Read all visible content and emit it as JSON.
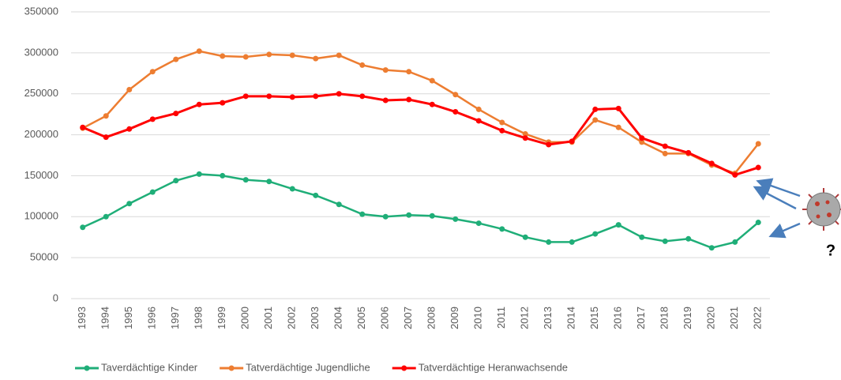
{
  "chart_data": {
    "type": "line",
    "categories": [
      "1993",
      "1994",
      "1995",
      "1996",
      "1997",
      "1998",
      "1999",
      "2000",
      "2001",
      "2002",
      "2003",
      "2004",
      "2005",
      "2006",
      "2007",
      "2008",
      "2009",
      "2010",
      "2011",
      "2012",
      "2013",
      "2014",
      "2015",
      "2016",
      "2017",
      "2018",
      "2019",
      "2020",
      "2021",
      "2022"
    ],
    "series": [
      {
        "name": "Taverdächtige Kinder",
        "color": "#1fae78",
        "values": [
          87000,
          100000,
          116000,
          130000,
          144000,
          152000,
          150000,
          145000,
          143000,
          134000,
          126000,
          115000,
          103000,
          100000,
          102000,
          101000,
          97000,
          92000,
          85000,
          75000,
          69000,
          69000,
          79000,
          90000,
          75000,
          70000,
          73000,
          62000,
          69000,
          93000
        ]
      },
      {
        "name": "Tatverdächtige Jugendliche",
        "color": "#ed7d31",
        "values": [
          208000,
          223000,
          255000,
          277000,
          292000,
          302000,
          296000,
          295000,
          298000,
          297000,
          293000,
          297000,
          285000,
          279000,
          277000,
          266000,
          249000,
          231000,
          215000,
          201000,
          191000,
          191000,
          218000,
          209000,
          191000,
          177000,
          177000,
          163000,
          153000,
          189000
        ]
      },
      {
        "name": "Tatverdächtige Heranwachsende",
        "color": "#ff0000",
        "values": [
          209000,
          197000,
          207000,
          219000,
          226000,
          237000,
          239000,
          247000,
          247000,
          246000,
          247000,
          250000,
          247000,
          242000,
          243000,
          237000,
          228000,
          217000,
          205000,
          196000,
          188000,
          192000,
          231000,
          232000,
          196000,
          186000,
          178000,
          165000,
          151000,
          160000
        ]
      }
    ],
    "ylim": [
      0,
      350000
    ],
    "yticks": [
      0,
      50000,
      100000,
      150000,
      200000,
      250000,
      300000,
      350000
    ],
    "grid": true,
    "legend": "bottom",
    "annotation": "?"
  }
}
